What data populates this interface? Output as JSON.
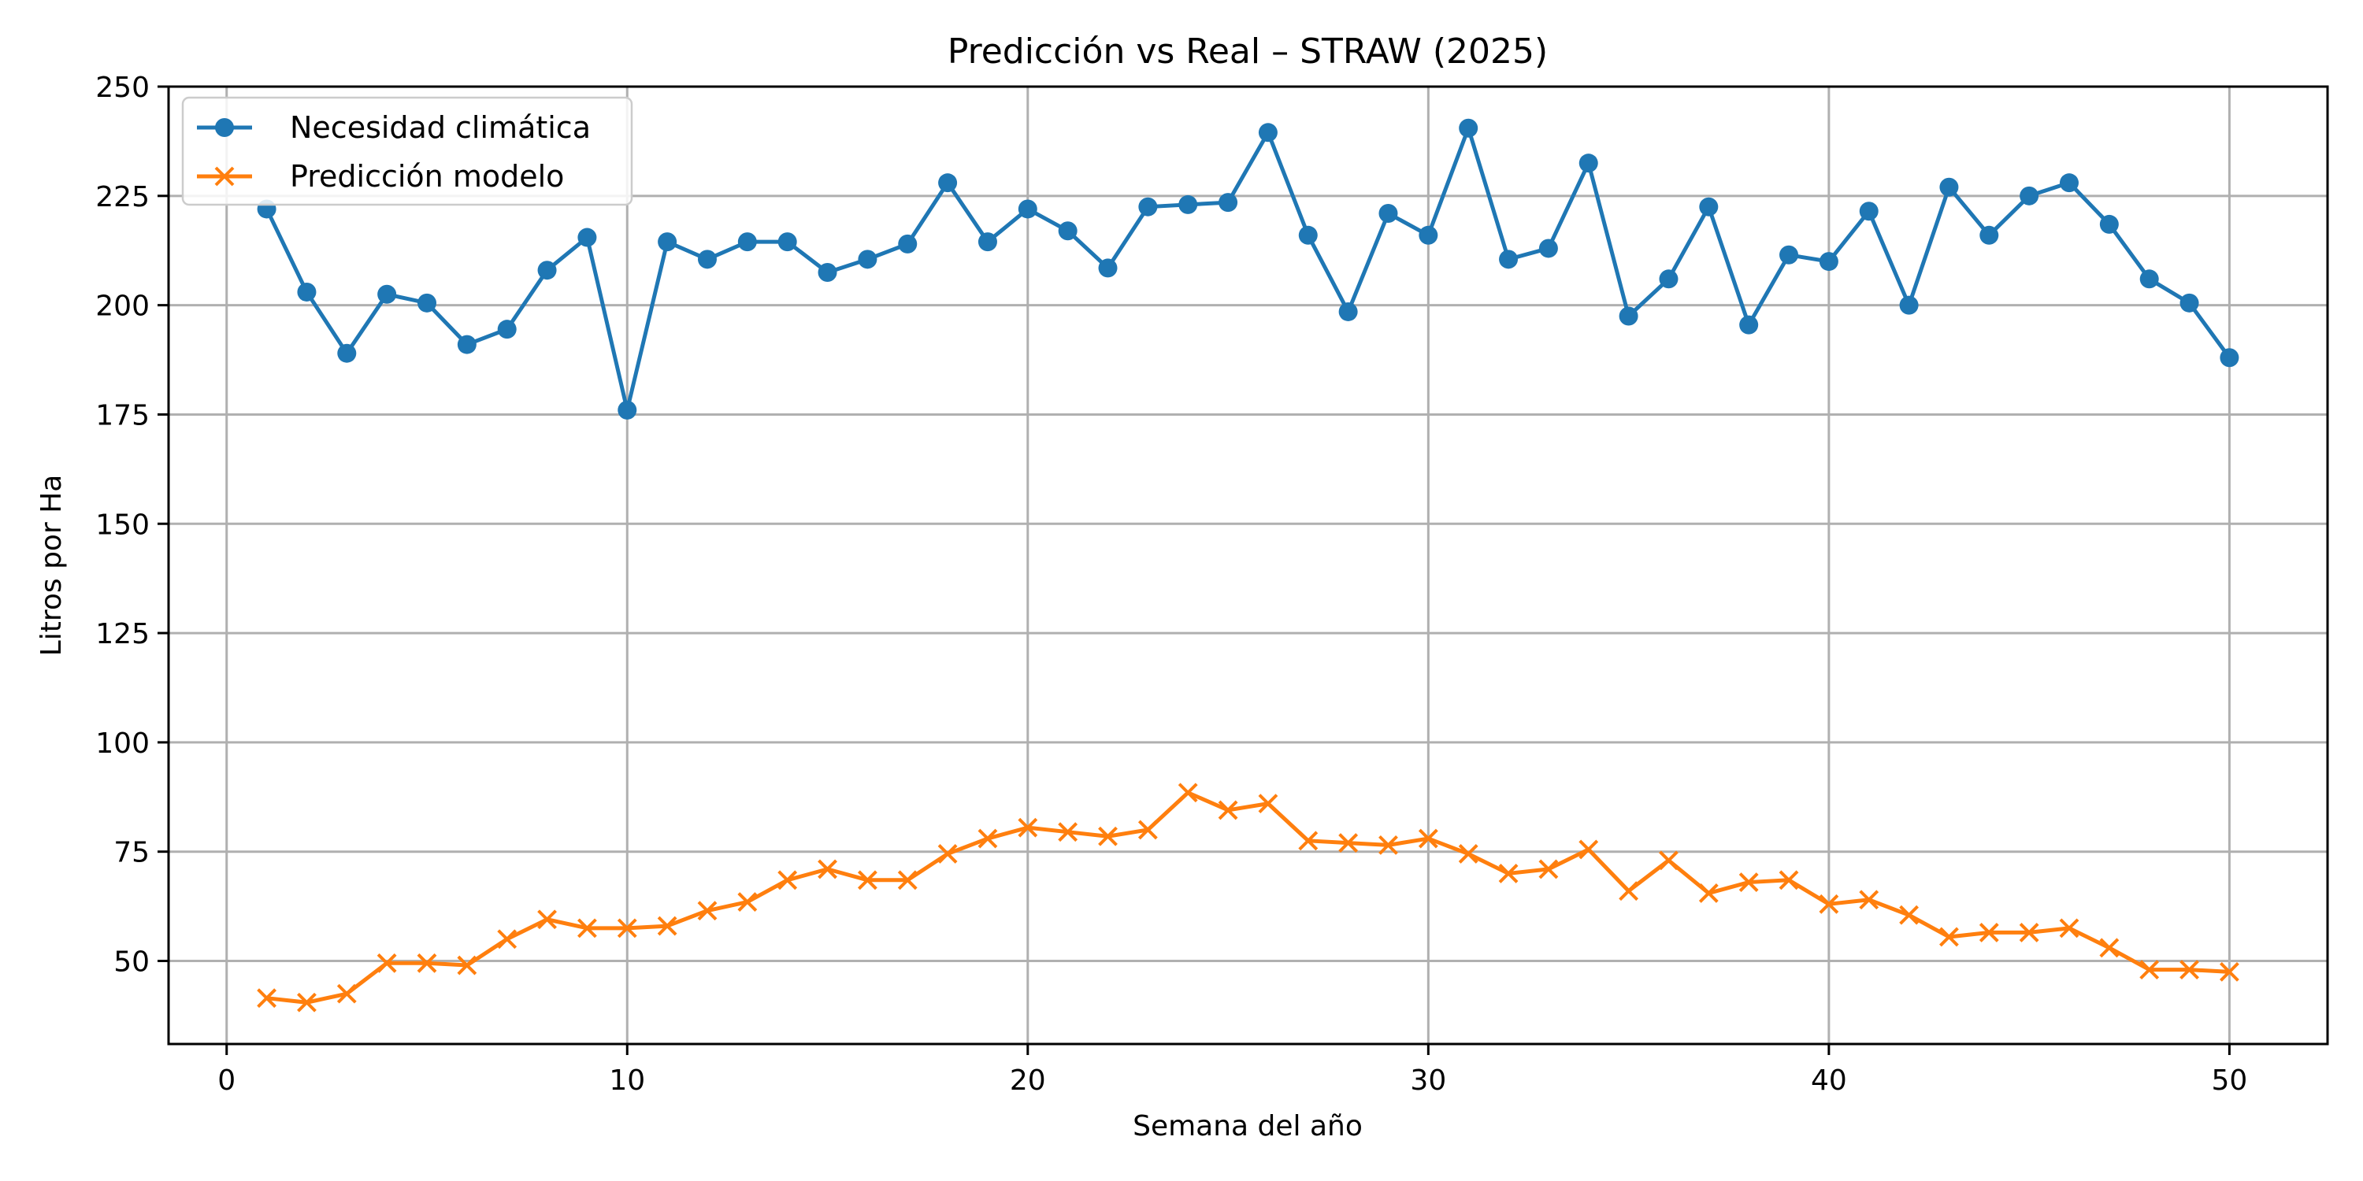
{
  "chart_data": {
    "type": "line",
    "title": "Predicción vs Real – STRAW (2025)",
    "xlabel": "Semana del año",
    "ylabel": "Litros por Ha",
    "xlim": [
      -1.45,
      52.45
    ],
    "ylim": [
      31,
      250
    ],
    "xticks": [
      0,
      10,
      20,
      30,
      40,
      50
    ],
    "yticks": [
      50,
      75,
      100,
      125,
      150,
      175,
      200,
      225,
      250
    ],
    "grid": true,
    "legend_position": "top-left",
    "x": [
      1,
      2,
      3,
      4,
      5,
      6,
      7,
      8,
      9,
      10,
      11,
      12,
      13,
      14,
      15,
      16,
      17,
      18,
      19,
      20,
      21,
      22,
      23,
      24,
      25,
      26,
      27,
      28,
      29,
      30,
      31,
      32,
      33,
      34,
      35,
      36,
      37,
      38,
      39,
      40,
      41,
      42,
      43,
      44,
      45,
      46,
      47,
      48,
      49,
      50
    ],
    "series": [
      {
        "name": "Necesidad climática",
        "color": "#1f77b4",
        "marker": "circle",
        "values": [
          222,
          203,
          189,
          202.5,
          200.5,
          191,
          194.5,
          208,
          215.5,
          176,
          214.5,
          210.5,
          214.5,
          214.5,
          207.5,
          210.5,
          214,
          228,
          214.5,
          222,
          217,
          208.5,
          222.5,
          223,
          223.5,
          239.5,
          216,
          198.5,
          221,
          216,
          240.5,
          210.5,
          213,
          232.5,
          197.5,
          206,
          222.5,
          195.5,
          211.5,
          210,
          221.5,
          200,
          227,
          216,
          225,
          228,
          218.5,
          206,
          200.5,
          188
        ]
      },
      {
        "name": "Predicción modelo",
        "color": "#ff7f0e",
        "marker": "x",
        "values": [
          41.5,
          40.5,
          42.5,
          49.5,
          49.5,
          49,
          55,
          59.5,
          57.5,
          57.5,
          58,
          61.5,
          63.5,
          68.5,
          71,
          68.5,
          68.5,
          74.5,
          78,
          80.5,
          79.5,
          78.5,
          80,
          88.5,
          84.5,
          86,
          77.5,
          77,
          76.5,
          78,
          74.5,
          70,
          71,
          75.5,
          66,
          73,
          65.5,
          68,
          68.5,
          63,
          64,
          60.5,
          55.5,
          56.5,
          56.5,
          57.5,
          53,
          48,
          48,
          47.5
        ]
      }
    ]
  }
}
